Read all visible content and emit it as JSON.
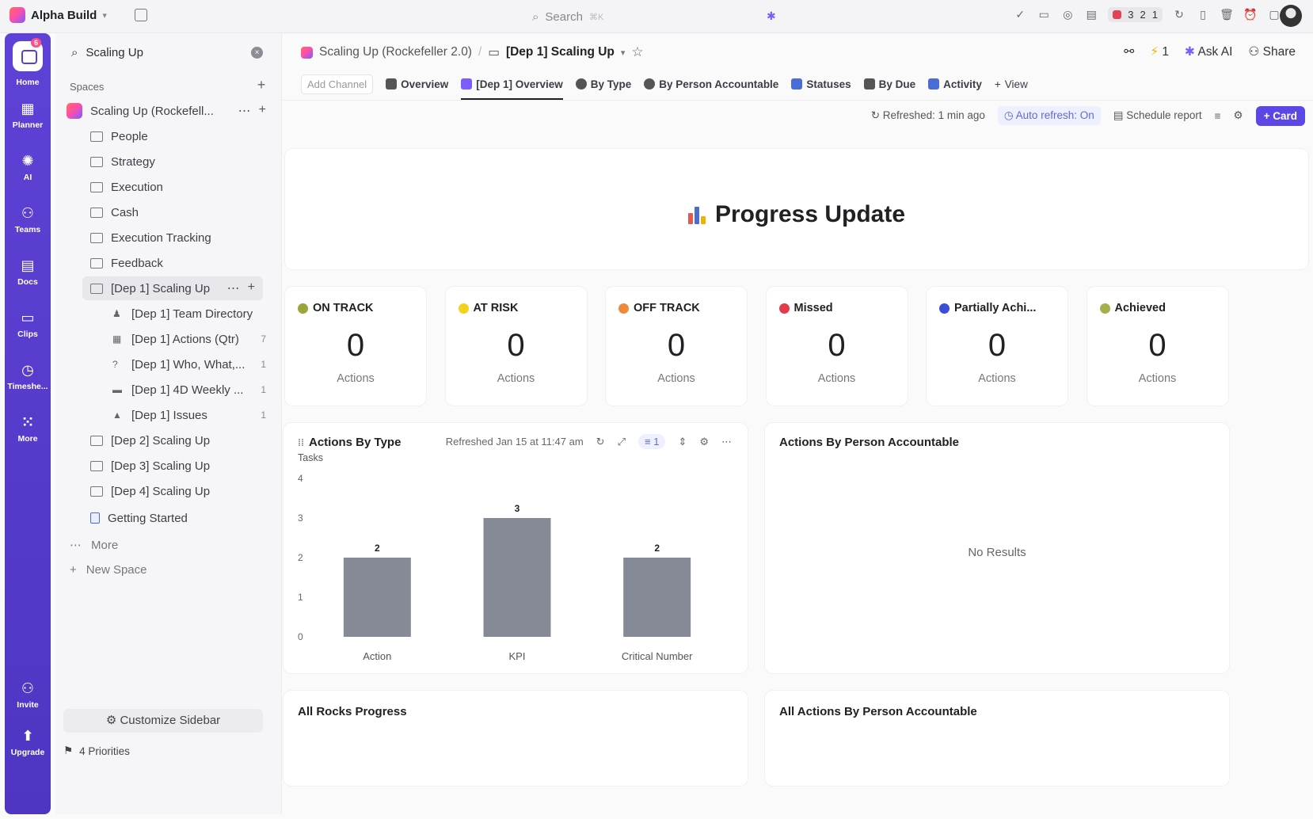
{
  "topbar": {
    "workspace": "Alpha Build",
    "search_placeholder": "Search",
    "search_shortcut": "⌘K",
    "timer": [
      "3",
      "2",
      "1"
    ]
  },
  "rail": [
    {
      "label": "Home",
      "icon": "home-icon",
      "badge": "6"
    },
    {
      "label": "Planner",
      "icon": "planner-icon"
    },
    {
      "label": "AI",
      "icon": "ai-icon"
    },
    {
      "label": "Teams",
      "icon": "teams-icon"
    },
    {
      "label": "Docs",
      "icon": "docs-icon"
    },
    {
      "label": "Clips",
      "icon": "clips-icon"
    },
    {
      "label": "Timeshe...",
      "icon": "clock-icon"
    },
    {
      "label": "More",
      "icon": "grid-icon"
    },
    {
      "label": "Invite",
      "icon": "invite-icon"
    },
    {
      "label": "Upgrade",
      "icon": "upgrade-icon"
    }
  ],
  "sidebar": {
    "search_value": "Scaling Up",
    "spaces_label": "Spaces",
    "space_name": "Scaling Up (Rockefell...",
    "folders": [
      "People",
      "Strategy",
      "Execution",
      "Cash",
      "Execution Tracking",
      "Feedback"
    ],
    "active_folder": "[Dep 1] Scaling Up",
    "children": [
      {
        "label": "[Dep 1] Team Directory",
        "count": "",
        "icon": "person-icon"
      },
      {
        "label": "[Dep 1] Actions (Qtr)",
        "count": "7",
        "icon": "list-icon"
      },
      {
        "label": "[Dep 1] Who, What,...",
        "count": "1",
        "icon": "question-icon"
      },
      {
        "label": "[Dep 1] 4D Weekly ...",
        "count": "1",
        "icon": "calendar-icon"
      },
      {
        "label": "[Dep 1] Issues",
        "count": "1",
        "icon": "warning-icon"
      }
    ],
    "more_folders": [
      "[Dep 2] Scaling Up",
      "[Dep 3] Scaling Up",
      "[Dep 4] Scaling Up"
    ],
    "getting_started": "Getting Started",
    "more": "More",
    "new_space": "New Space",
    "customize": "Customize Sidebar",
    "priorities": "4 Priorities"
  },
  "breadcrumb": {
    "space": "Scaling Up (Rockefeller 2.0)",
    "separator": "/",
    "current": "[Dep 1] Scaling Up",
    "lightning_count": "1",
    "ask_ai": "Ask AI",
    "share": "Share"
  },
  "tabs": {
    "add_channel": "Add Channel",
    "items": [
      "Overview",
      "[Dep 1] Overview",
      "By Type",
      "By Person Accountable",
      "Statuses",
      "By Due",
      "Activity"
    ],
    "add_view": "View"
  },
  "toolbar": {
    "refreshed": "Refreshed: 1 min ago",
    "auto_refresh": "Auto refresh: On",
    "schedule": "Schedule report",
    "card": "Card"
  },
  "dashboard": {
    "title": "Progress Update",
    "stats": [
      {
        "label": "ON TRACK",
        "value": "0",
        "unit": "Actions",
        "color": "#9aa63a"
      },
      {
        "label": "AT RISK",
        "value": "0",
        "unit": "Actions",
        "color": "#f2d21b"
      },
      {
        "label": "OFF TRACK",
        "value": "0",
        "unit": "Actions",
        "color": "#f08a3a"
      },
      {
        "label": "Missed",
        "value": "0",
        "unit": "Actions",
        "color": "#e23b4a"
      },
      {
        "label": "Partially Achi...",
        "value": "0",
        "unit": "Actions",
        "color": "#3a4fd6"
      },
      {
        "label": "Achieved",
        "value": "0",
        "unit": "Actions",
        "color": "#a6b048"
      }
    ],
    "actions_by_type": {
      "title": "Actions By Type",
      "refreshed": "Refreshed Jan 15 at 11:47 am",
      "filter_count": "1"
    },
    "person_accountable": {
      "title": "Actions By Person Accountable",
      "empty": "No Results"
    },
    "all_rocks": "All Rocks Progress",
    "all_actions": "All Actions By Person Accountable"
  },
  "chart_data": {
    "type": "bar",
    "ylabel": "Tasks",
    "categories": [
      "Action",
      "KPI",
      "Critical Number"
    ],
    "values": [
      2,
      3,
      2
    ],
    "ylim": [
      0,
      4
    ],
    "yticks": [
      0,
      1,
      2,
      3,
      4
    ],
    "bar_color": "#868a96"
  }
}
